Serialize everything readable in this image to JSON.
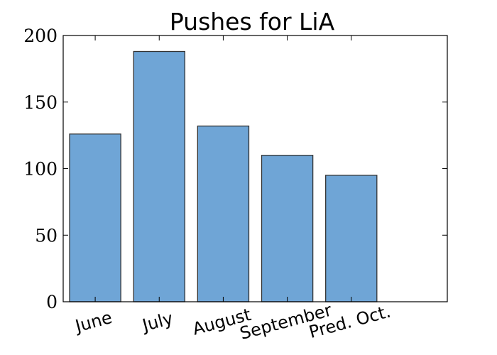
{
  "chart_data": {
    "type": "bar",
    "title": "Pushes for LiA",
    "xlabel": "",
    "ylabel": "",
    "categories": [
      "June",
      "July",
      "August",
      "September",
      "Pred. Oct."
    ],
    "values": [
      126,
      188,
      132,
      110,
      95
    ],
    "ylim": [
      0,
      200
    ],
    "yticks": [
      0,
      50,
      100,
      150,
      200
    ],
    "ytick_labels": [
      "0",
      "50",
      "100",
      "150",
      "200"
    ],
    "xtick_rotation_deg": -15,
    "bar_color": "#6fa5d6",
    "bar_edge_color": "#333333",
    "grid": false,
    "legend": "none"
  }
}
